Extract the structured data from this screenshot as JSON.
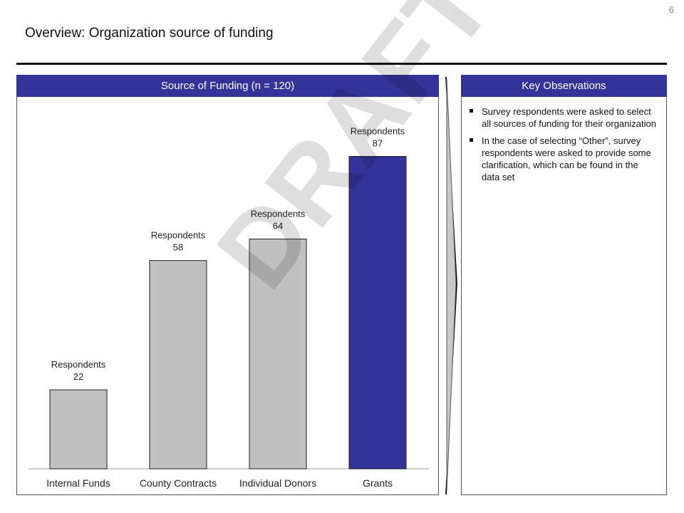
{
  "page_number": "6",
  "page_title": "Overview: Organization source of funding",
  "left_panel": {
    "header": "Source of Funding (n = 120)"
  },
  "right_panel": {
    "header": "Key Observations",
    "observations": [
      "Survey respondents were asked to select all sources of funding for their organization",
      "In the case of selecting “Other”, survey respondents were asked to provide some clarification, which can be found in the data set"
    ]
  },
  "watermark": "DRAFT",
  "chart_data": {
    "type": "bar",
    "categories": [
      "Internal Funds",
      "County Contracts",
      "Individual Donors",
      "Grants"
    ],
    "values": [
      22,
      58,
      64,
      87
    ],
    "data_label_prefix": "Respondents",
    "ylim": [
      0,
      100
    ],
    "grid": false,
    "colors": {
      "default": "#C0C0C0",
      "highlight": "#333399",
      "highlight_category": "Grants"
    }
  }
}
